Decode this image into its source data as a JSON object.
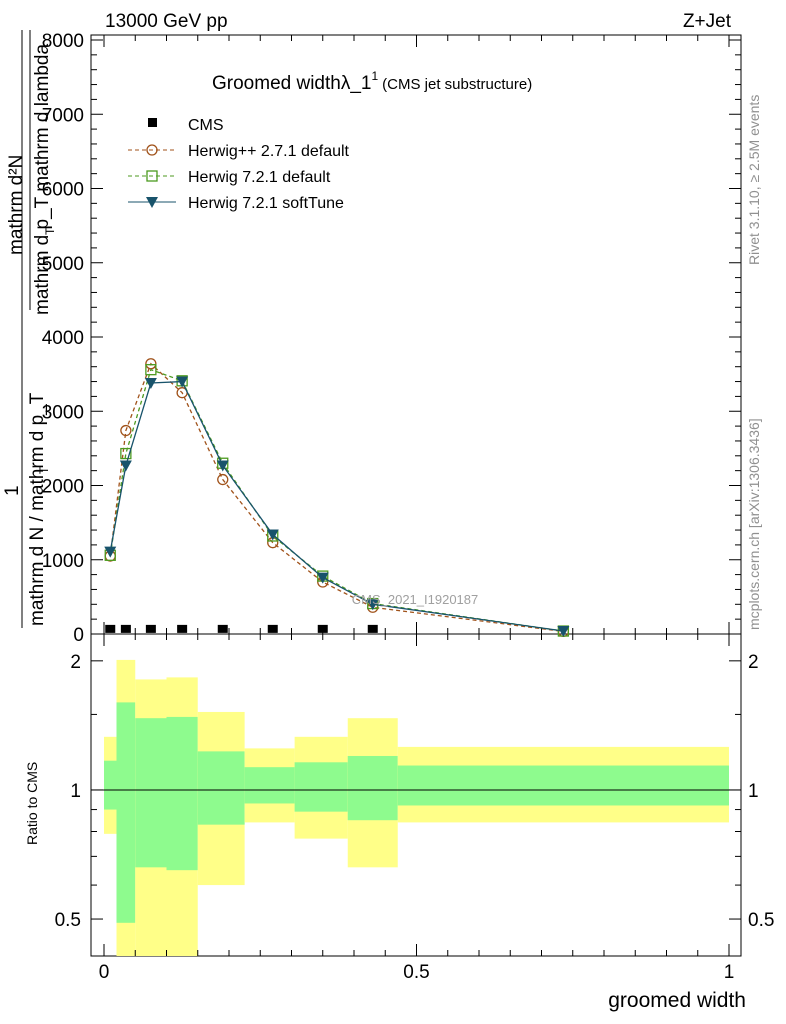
{
  "header": {
    "energy": "13000 GeV pp",
    "process": "Z+Jet",
    "plot_title_main": "Groomed widthλ_1",
    "plot_title_sup": "1",
    "plot_title_sub": "(CMS jet substructure)",
    "side_rivet": "Rivet 3.1.10, ≥ 2.5M events",
    "side_mcplots": "mcplots.cern.ch [arXiv:1306.3436]",
    "watermark": "CMS_2021_I1920187"
  },
  "axes": {
    "ylabel_num": "mathrm d²N",
    "ylabel_den": "mathrm d p_T mathrm d lambda",
    "ylabel_den_T": "T",
    "ylabel_one": "1",
    "ylabel_norm": "mathrm d N / mathrm d p_T",
    "ylabel_norm_T": "T",
    "ratio_ylabel": "Ratio to CMS",
    "xlabel": "groomed width"
  },
  "legend": {
    "cms": "CMS",
    "herwigpp": "Herwig++ 2.7.1 default",
    "herwig72": "Herwig 7.2.1 default",
    "softtune": "Herwig 7.2.1 softTune"
  },
  "chart_data": [
    {
      "type": "line",
      "panel": "main",
      "xlim": [
        0,
        1
      ],
      "ylim": [
        0,
        8000
      ],
      "yticks": [
        0,
        1000,
        2000,
        3000,
        4000,
        5000,
        6000,
        7000,
        8000
      ],
      "ytick_labels": [
        "0",
        "1000",
        "2000",
        "3000",
        "4000",
        "5000",
        "6000",
        "7000",
        "8000"
      ],
      "series": [
        {
          "name": "CMS",
          "color": "#000000",
          "marker": "square",
          "x": [
            0.01,
            0.035,
            0.075,
            0.125,
            0.19,
            0.27,
            0.35,
            0.43
          ],
          "y": [
            15,
            15,
            15,
            15,
            15,
            15,
            15,
            15
          ]
        },
        {
          "name": "Herwig++ 2.7.1 default",
          "color": "#a0521a",
          "marker": "circle",
          "dash": true,
          "x": [
            0.01,
            0.035,
            0.075,
            0.125,
            0.19,
            0.27,
            0.35,
            0.43,
            0.735
          ],
          "y": [
            1050,
            2740,
            3640,
            3250,
            2080,
            1230,
            700,
            360,
            35
          ]
        },
        {
          "name": "Herwig 7.2.1 default",
          "color": "#4c9a1f",
          "marker": "square-open",
          "dash": true,
          "x": [
            0.01,
            0.035,
            0.075,
            0.125,
            0.19,
            0.27,
            0.35,
            0.43,
            0.735
          ],
          "y": [
            1060,
            2430,
            3560,
            3410,
            2300,
            1320,
            780,
            410,
            40
          ]
        },
        {
          "name": "Herwig 7.2.1 softTune",
          "color": "#18536b",
          "marker": "triangle-down",
          "x": [
            0.01,
            0.035,
            0.075,
            0.125,
            0.19,
            0.27,
            0.35,
            0.43,
            0.735
          ],
          "y": [
            1110,
            2270,
            3380,
            3400,
            2270,
            1340,
            760,
            400,
            40
          ]
        }
      ]
    },
    {
      "type": "area",
      "panel": "ratio",
      "xlim": [
        0,
        1
      ],
      "ylim": [
        0.41,
        2.31
      ],
      "log_y": true,
      "yticks": [
        0.5,
        1,
        2
      ],
      "ytick_labels": [
        "0.5",
        "1",
        "2"
      ],
      "xticks": [
        0,
        0.5,
        1
      ],
      "xtick_labels": [
        "0",
        "0.5",
        "1"
      ],
      "reference_line": 1,
      "bins": [
        {
          "x0": 0.0,
          "x1": 0.02,
          "yellow": [
            0.79,
            1.33
          ],
          "green": [
            0.9,
            1.17
          ]
        },
        {
          "x0": 0.02,
          "x1": 0.05,
          "yellow": [
            0.4,
            2.01
          ],
          "green": [
            0.49,
            1.6
          ]
        },
        {
          "x0": 0.05,
          "x1": 0.1,
          "yellow": [
            0.4,
            1.81
          ],
          "green": [
            0.66,
            1.47
          ]
        },
        {
          "x0": 0.1,
          "x1": 0.15,
          "yellow": [
            0.4,
            1.83
          ],
          "green": [
            0.65,
            1.48
          ]
        },
        {
          "x0": 0.15,
          "x1": 0.225,
          "yellow": [
            0.6,
            1.52
          ],
          "green": [
            0.83,
            1.23
          ]
        },
        {
          "x0": 0.225,
          "x1": 0.305,
          "yellow": [
            0.84,
            1.25
          ],
          "green": [
            0.93,
            1.13
          ]
        },
        {
          "x0": 0.305,
          "x1": 0.39,
          "yellow": [
            0.77,
            1.33
          ],
          "green": [
            0.89,
            1.16
          ]
        },
        {
          "x0": 0.39,
          "x1": 0.47,
          "yellow": [
            0.66,
            1.47
          ],
          "green": [
            0.85,
            1.2
          ]
        },
        {
          "x0": 0.47,
          "x1": 1.0,
          "yellow": [
            0.84,
            1.26
          ],
          "green": [
            0.92,
            1.14
          ]
        }
      ]
    }
  ]
}
